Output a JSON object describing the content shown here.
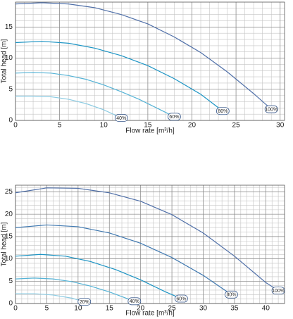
{
  "chart_data": [
    {
      "type": "line",
      "x_label": "Flow rate [m³/h]",
      "y_label": "Total head [m]",
      "xlim": [
        0,
        30.5
      ],
      "ylim": [
        0,
        19
      ],
      "xticks": [
        0,
        5,
        10,
        15,
        20,
        25,
        30
      ],
      "yticks": [
        0,
        5,
        10,
        15
      ],
      "grid": true,
      "series": [
        {
          "name": "100%",
          "color": "#4f6fa8",
          "x": [
            0,
            3,
            6,
            9,
            12,
            15,
            18,
            21,
            24,
            27,
            29
          ],
          "values": [
            18.7,
            18.9,
            18.7,
            18.1,
            17.0,
            15.5,
            13.4,
            10.9,
            7.8,
            4.3,
            1.8
          ]
        },
        {
          "name": "80%",
          "color": "#1c94c4",
          "x": [
            0,
            3,
            6,
            9,
            12,
            15,
            18,
            21,
            23.5
          ],
          "values": [
            12.5,
            12.7,
            12.4,
            11.6,
            10.4,
            8.8,
            6.7,
            4.2,
            1.5
          ]
        },
        {
          "name": "60%",
          "color": "#55b3d6",
          "x": [
            0,
            2,
            4,
            6,
            8,
            10,
            12,
            14,
            16,
            18
          ],
          "values": [
            7.6,
            7.7,
            7.6,
            7.2,
            6.6,
            5.7,
            4.6,
            3.4,
            2.0,
            0.6
          ]
        },
        {
          "name": "40%",
          "color": "#8ccbe2",
          "x": [
            0,
            2,
            4,
            6,
            8,
            10,
            12
          ],
          "values": [
            3.9,
            3.9,
            3.8,
            3.4,
            2.7,
            1.7,
            0.4
          ]
        }
      ]
    },
    {
      "type": "line",
      "x_label": "Flow rate [m³/h]",
      "y_label": "Total head [m]",
      "xlim": [
        0,
        43
      ],
      "ylim": [
        0,
        26.5
      ],
      "xticks": [
        0,
        5,
        10,
        15,
        20,
        25,
        30,
        35,
        40
      ],
      "yticks": [
        0,
        5,
        10,
        15,
        20,
        25
      ],
      "grid": true,
      "series": [
        {
          "name": "100%",
          "color": "#4f6fa8",
          "x": [
            0,
            5,
            10,
            15,
            20,
            25,
            30,
            35,
            40,
            42
          ],
          "values": [
            24.8,
            25.9,
            25.8,
            24.8,
            22.9,
            19.9,
            15.8,
            10.6,
            4.7,
            2.9
          ]
        },
        {
          "name": "80%",
          "color": "#3f78b0",
          "x": [
            0,
            5,
            10,
            15,
            20,
            25,
            30,
            34.5
          ],
          "values": [
            17.0,
            17.6,
            17.2,
            15.8,
            13.5,
            10.3,
            6.3,
            2.0
          ]
        },
        {
          "name": "60%",
          "color": "#1c94c4",
          "x": [
            0,
            4,
            8,
            12,
            16,
            20,
            24,
            26.5
          ],
          "values": [
            10.6,
            11.0,
            10.6,
            9.4,
            7.6,
            5.3,
            2.6,
            1.1
          ]
        },
        {
          "name": "40%",
          "color": "#55b3d6",
          "x": [
            0,
            3,
            6,
            9,
            12,
            15,
            19
          ],
          "values": [
            5.5,
            5.7,
            5.5,
            4.9,
            3.9,
            2.6,
            0.5
          ]
        },
        {
          "name": "20%",
          "color": "#8ccbe2",
          "x": [
            0,
            3,
            6,
            9,
            11
          ],
          "values": [
            2.2,
            2.2,
            1.9,
            1.2,
            0.4
          ]
        }
      ]
    }
  ]
}
